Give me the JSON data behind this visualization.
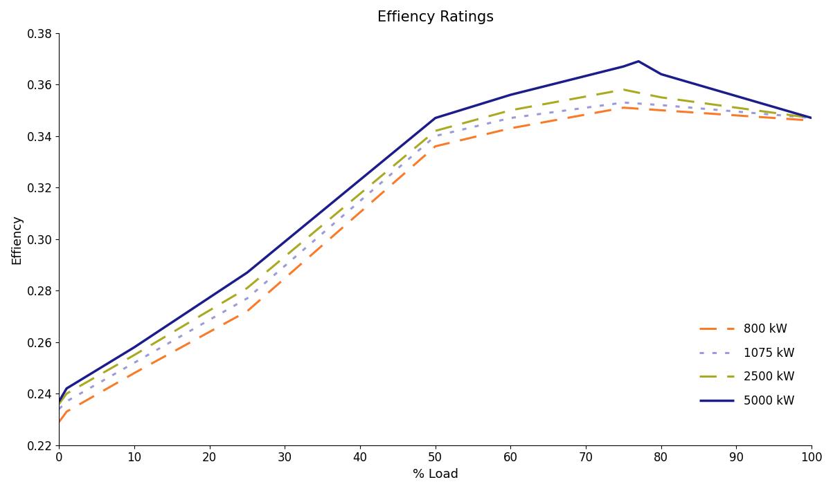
{
  "title": "Effiency Ratings",
  "xlabel": "% Load",
  "ylabel": "Effiency",
  "xlim": [
    0,
    100
  ],
  "ylim": [
    0.22,
    0.38
  ],
  "yticks": [
    0.22,
    0.24,
    0.26,
    0.28,
    0.3,
    0.32,
    0.34,
    0.36,
    0.38
  ],
  "xticks": [
    0,
    10,
    20,
    30,
    40,
    50,
    60,
    70,
    80,
    90,
    100
  ],
  "series": [
    {
      "label": "800 kW",
      "color": "#F97B2A",
      "linestyle": "dashed",
      "dash_pattern": [
        8,
        5
      ],
      "linewidth": 2.2,
      "x": [
        0,
        1,
        10,
        25,
        50,
        60,
        75,
        80,
        100
      ],
      "y": [
        0.229,
        0.233,
        0.248,
        0.272,
        0.336,
        0.343,
        0.351,
        0.35,
        0.346
      ]
    },
    {
      "label": "1075 kW",
      "color": "#9B9BDB",
      "linestyle": "dotted",
      "dash_pattern": [
        2,
        4
      ],
      "linewidth": 2.2,
      "x": [
        0,
        1,
        10,
        25,
        50,
        60,
        75,
        80,
        100
      ],
      "y": [
        0.234,
        0.237,
        0.252,
        0.277,
        0.34,
        0.347,
        0.353,
        0.352,
        0.347
      ]
    },
    {
      "label": "2500 kW",
      "color": "#AAAA22",
      "linestyle": "dashed",
      "dash_pattern": [
        8,
        5
      ],
      "linewidth": 2.2,
      "x": [
        0,
        1,
        10,
        25,
        50,
        60,
        75,
        80,
        100
      ],
      "y": [
        0.236,
        0.24,
        0.255,
        0.281,
        0.342,
        0.35,
        0.358,
        0.355,
        0.347
      ]
    },
    {
      "label": "5000 kW",
      "color": "#1C1C8A",
      "linestyle": "solid",
      "dash_pattern": [],
      "linewidth": 2.5,
      "x": [
        0,
        1,
        10,
        25,
        50,
        60,
        75,
        77,
        80,
        100
      ],
      "y": [
        0.237,
        0.242,
        0.258,
        0.287,
        0.347,
        0.356,
        0.367,
        0.369,
        0.364,
        0.347
      ]
    }
  ],
  "legend_loc": "lower right",
  "background_color": "#FFFFFF",
  "title_fontsize": 15,
  "label_fontsize": 13,
  "tick_fontsize": 12
}
